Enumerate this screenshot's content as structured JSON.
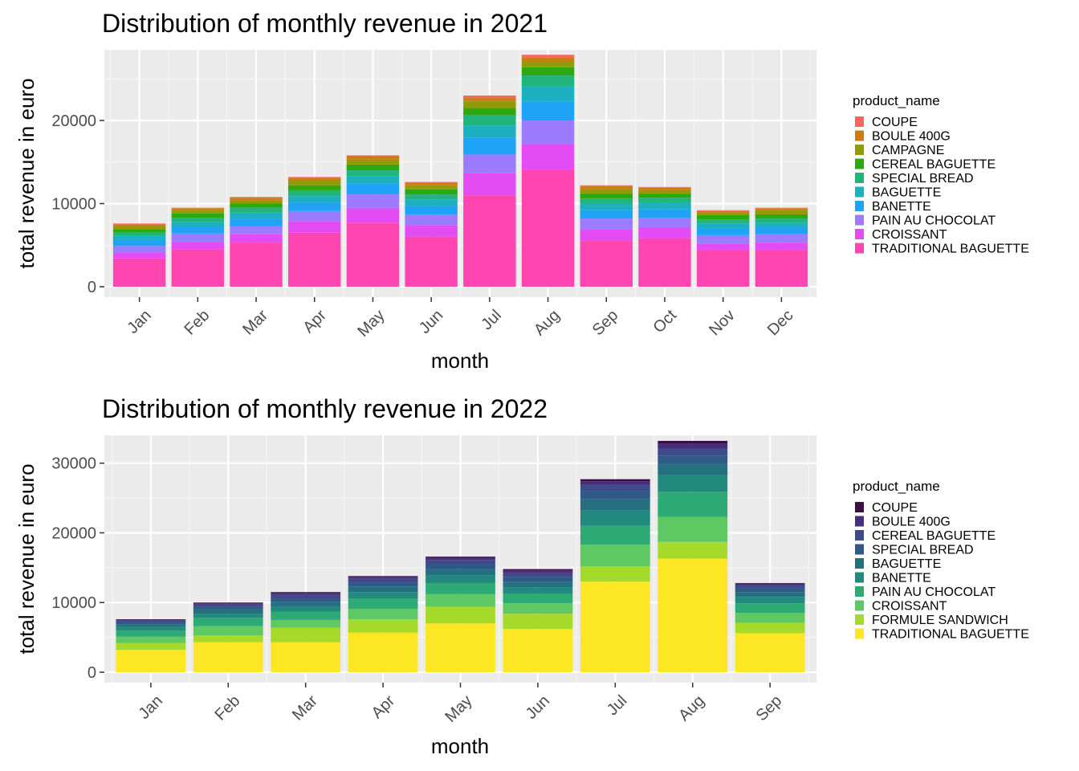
{
  "chart_data": [
    {
      "type": "bar",
      "stacked": true,
      "title": "Distribution of monthly revenue in 2021",
      "xlabel": "month",
      "ylabel": "total revenue in euro",
      "ylim": [
        0,
        28500
      ],
      "yticks": [
        0,
        10000,
        20000
      ],
      "legend_title": "product_name",
      "legend_position": "right",
      "grid": true,
      "categories": [
        "Jan",
        "Feb",
        "Mar",
        "Apr",
        "May",
        "Jun",
        "Jul",
        "Aug",
        "Sep",
        "Oct",
        "Nov",
        "Dec"
      ],
      "series": [
        {
          "name": "TRADITIONAL BAGUETTE",
          "color": "#FF45B0",
          "values": [
            3400,
            4500,
            5300,
            6500,
            7700,
            6000,
            11000,
            14100,
            5500,
            5800,
            4400,
            4400
          ]
        },
        {
          "name": "CROISSANT",
          "color": "#E44CF3",
          "values": [
            700,
            900,
            1000,
            1400,
            1800,
            1400,
            2700,
            3000,
            1400,
            1300,
            800,
            900
          ]
        },
        {
          "name": "PAIN AU CHOCOLAT",
          "color": "#9D7BFF",
          "values": [
            800,
            1000,
            1000,
            1200,
            1600,
            1300,
            2200,
            2900,
            1300,
            1200,
            1000,
            1000
          ]
        },
        {
          "name": "BANETTE",
          "color": "#1FA3F6",
          "values": [
            700,
            800,
            900,
            1000,
            1300,
            1000,
            2000,
            2300,
            1000,
            1000,
            800,
            800
          ]
        },
        {
          "name": "BAGUETTE",
          "color": "#1CB0C1",
          "values": [
            500,
            600,
            700,
            800,
            900,
            800,
            1500,
            1800,
            800,
            800,
            600,
            600
          ]
        },
        {
          "name": "SPECIAL BREAD",
          "color": "#21B57C",
          "values": [
            400,
            500,
            600,
            700,
            700,
            600,
            1200,
            1300,
            600,
            600,
            500,
            500
          ]
        },
        {
          "name": "CEREAL BAGUETTE",
          "color": "#2DA80E",
          "values": [
            400,
            500,
            500,
            600,
            700,
            600,
            900,
            1000,
            600,
            500,
            500,
            500
          ]
        },
        {
          "name": "CAMPAGNE",
          "color": "#939A08",
          "values": [
            400,
            400,
            400,
            600,
            600,
            500,
            800,
            700,
            500,
            400,
            300,
            500
          ]
        },
        {
          "name": "BOULE 400G",
          "color": "#CF7B13",
          "values": [
            200,
            200,
            300,
            300,
            400,
            300,
            400,
            500,
            400,
            300,
            200,
            200
          ]
        },
        {
          "name": "COUPE",
          "color": "#F56860",
          "values": [
            100,
            100,
            100,
            100,
            100,
            100,
            300,
            300,
            100,
            100,
            100,
            100
          ]
        }
      ]
    },
    {
      "type": "bar",
      "stacked": true,
      "title": "Distribution of monthly revenue in 2022",
      "xlabel": "month",
      "ylabel": "total revenue in euro",
      "ylim": [
        0,
        34000
      ],
      "yticks": [
        0,
        10000,
        20000,
        30000
      ],
      "legend_title": "product_name",
      "legend_position": "right",
      "grid": true,
      "categories": [
        "Jan",
        "Feb",
        "Mar",
        "Apr",
        "May",
        "Jun",
        "Jul",
        "Aug",
        "Sep"
      ],
      "series": [
        {
          "name": "TRADITIONAL BAGUETTE",
          "color": "#FDE725",
          "values": [
            3200,
            4300,
            4300,
            5700,
            7000,
            6200,
            13000,
            16300,
            5600
          ]
        },
        {
          "name": "FORMULE SANDWICH",
          "color": "#A6DA2A",
          "values": [
            1000,
            1000,
            2100,
            1900,
            2400,
            2200,
            2200,
            2400,
            1500
          ]
        },
        {
          "name": "CROISSANT",
          "color": "#5EC962",
          "values": [
            900,
            1300,
            1100,
            1500,
            1800,
            1500,
            3100,
            3600,
            1400
          ]
        },
        {
          "name": "PAIN AU CHOCOLAT",
          "color": "#2EAA74",
          "values": [
            900,
            1200,
            1200,
            1500,
            1600,
            1400,
            2700,
            3600,
            1400
          ]
        },
        {
          "name": "BANETTE",
          "color": "#21897E",
          "values": [
            500,
            600,
            700,
            900,
            1100,
            900,
            2200,
            2400,
            900
          ]
        },
        {
          "name": "BAGUETTE",
          "color": "#25707F",
          "values": [
            400,
            600,
            700,
            800,
            900,
            800,
            1600,
            1600,
            700
          ]
        },
        {
          "name": "SPECIAL BREAD",
          "color": "#2F5A88",
          "values": [
            300,
            400,
            500,
            600,
            700,
            700,
            1200,
            1200,
            600
          ]
        },
        {
          "name": "CEREAL BAGUETTE",
          "color": "#3E4A89",
          "values": [
            200,
            300,
            500,
            500,
            600,
            500,
            900,
            1000,
            400
          ]
        },
        {
          "name": "BOULE 400G",
          "color": "#472D7B",
          "values": [
            100,
            200,
            300,
            300,
            400,
            400,
            500,
            700,
            200
          ]
        },
        {
          "name": "COUPE",
          "color": "#3B0E45",
          "values": [
            100,
            100,
            100,
            100,
            100,
            200,
            300,
            400,
            100
          ]
        }
      ]
    }
  ]
}
